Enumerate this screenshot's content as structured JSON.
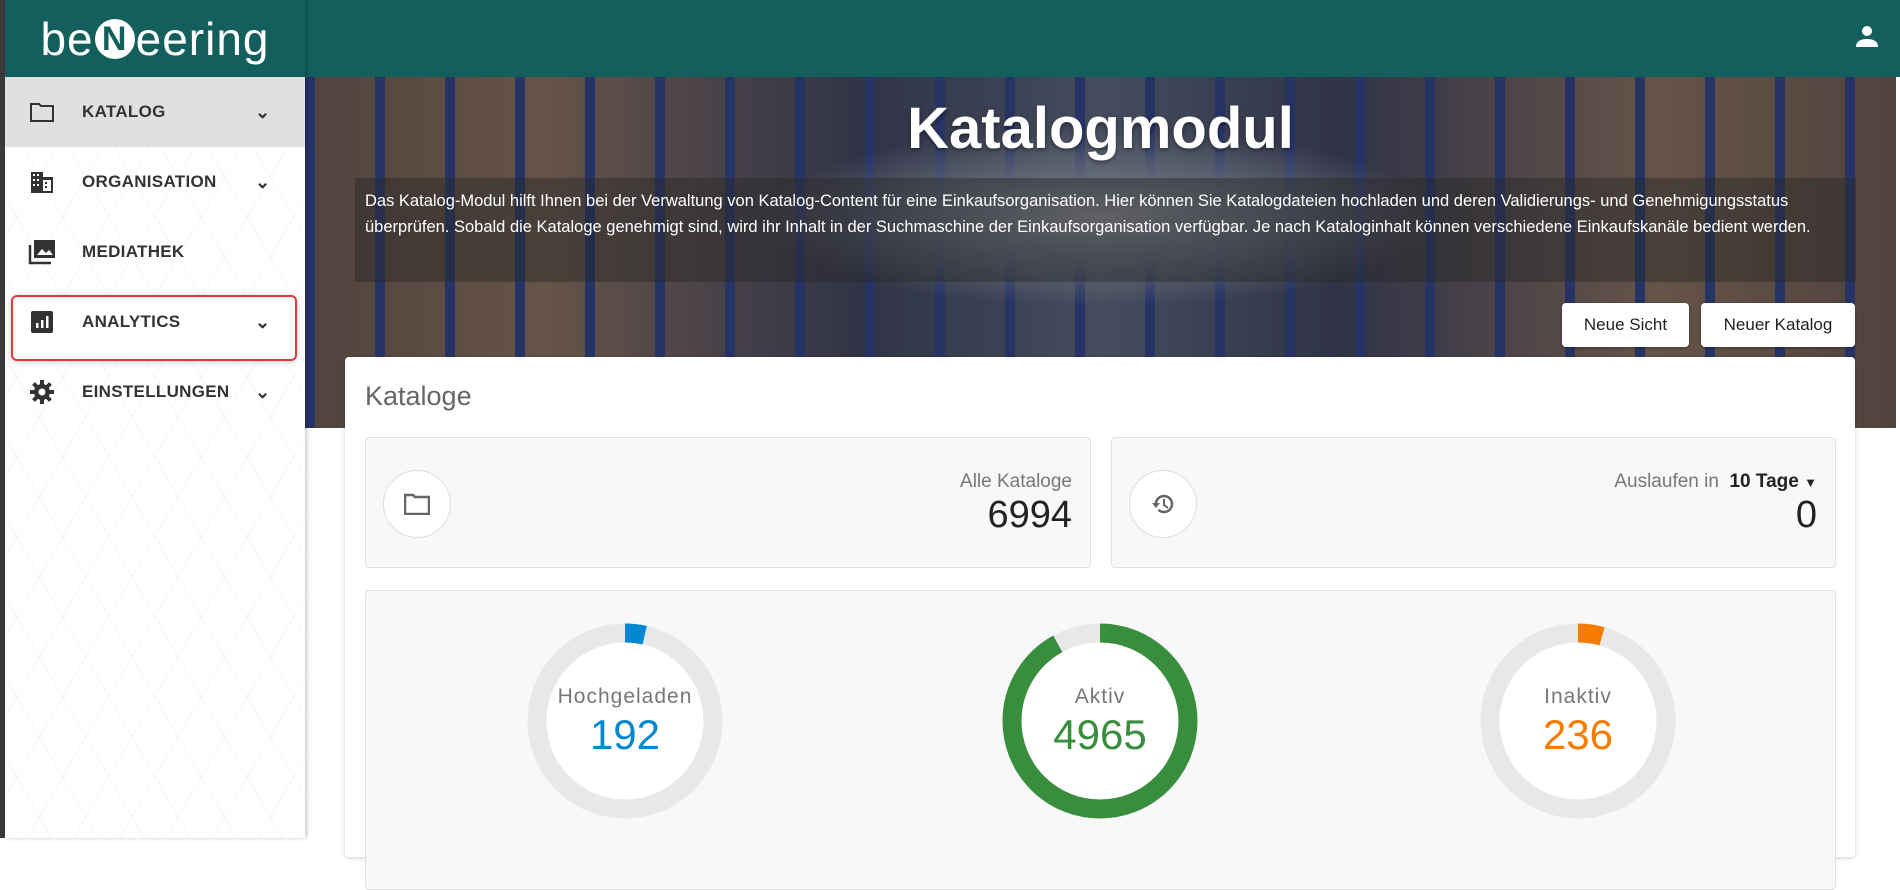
{
  "app": {
    "logo": {
      "pre": "be",
      "mark": "N",
      "post": "eering"
    }
  },
  "sidebar": {
    "items": [
      {
        "label": "KATALOG",
        "icon": "folder-icon",
        "expandable": true,
        "active": true
      },
      {
        "label": "ORGANISATION",
        "icon": "building-icon",
        "expandable": true,
        "highlighted": true
      },
      {
        "label": "MEDIATHEK",
        "icon": "photo-library-icon",
        "expandable": false
      },
      {
        "label": "ANALYTICS",
        "icon": "analytics-icon",
        "expandable": true
      },
      {
        "label": "EINSTELLUNGEN",
        "icon": "gear-icon",
        "expandable": true
      }
    ]
  },
  "header": {
    "user_icon": "account-icon"
  },
  "banner": {
    "title": "Katalogmodul",
    "description": "Das Katalog-Modul hilft Ihnen bei der Verwaltung von Katalog-Content für eine Einkaufsorganisation. Hier können Sie Katalogdateien hochladen und deren Validierungs- und Genehmigungsstatus überprüfen. Sobald die Kataloge genehmigt sind, wird ihr Inhalt in der Suchmaschine der Einkaufsorganisation verfügbar. Je nach Kataloginhalt können verschiedene Einkaufskanäle bedient werden.",
    "new_view_label": "Neue Sicht",
    "new_catalog_label": "Neuer Katalog"
  },
  "card": {
    "title": "Kataloge",
    "all": {
      "label": "Alle Kataloge",
      "value": "6994",
      "icon": "folder-icon"
    },
    "expiring": {
      "label": "Auslaufen in",
      "period": "10 Tage",
      "value": "0",
      "icon": "history-icon"
    },
    "donuts": [
      {
        "label": "Hochgeladen",
        "value": "192",
        "color": "#0288d1",
        "fill_percent": 3.6
      },
      {
        "label": "Aktiv",
        "value": "4965",
        "color": "#388e3c",
        "fill_percent": 92
      },
      {
        "label": "Inaktiv",
        "value": "236",
        "color": "#f57c00",
        "fill_percent": 4.4
      }
    ]
  },
  "colors": {
    "primary": "#135f5c",
    "highlight": "#e53935",
    "track": "#e8e8e8"
  }
}
